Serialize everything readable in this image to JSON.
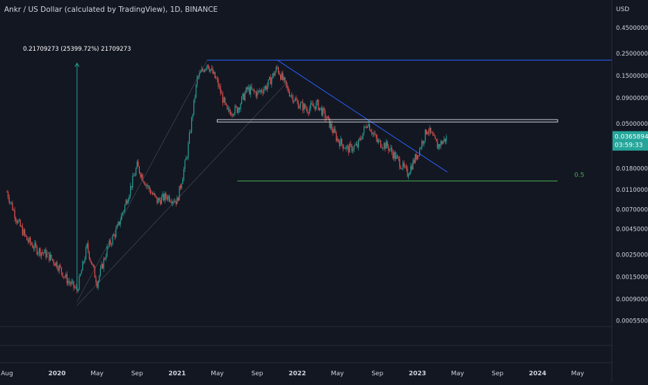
{
  "chart_data": {
    "type": "candlestick",
    "title": "Ankr / US Dollar (calculated by TradingView), 1D, BINANCE",
    "currency": "USD",
    "y_scale": "log",
    "ylim": [
      0.00048,
      0.6
    ],
    "y_ticks": [
      "0.45000000",
      "0.25000000",
      "0.15000000",
      "0.09000000",
      "0.05000000",
      "0.01800000",
      "0.01100000",
      "0.00700000",
      "0.00450000",
      "0.00250000",
      "0.00150000",
      "0.00090000",
      "0.00055000"
    ],
    "x_ticks": [
      "Aug",
      "2020",
      "May",
      "Sep",
      "2021",
      "May",
      "Sep",
      "2022",
      "May",
      "Sep",
      "2023",
      "May",
      "Sep",
      "2024",
      "May"
    ],
    "last_price": {
      "value": "0.03658946",
      "countdown": "03:59:33"
    },
    "annotations": {
      "measure_label": "0.21709273 (25399.72%) 21709273",
      "fib_label": "0.5"
    },
    "colors": {
      "background": "#131722",
      "up": "#26a69a",
      "down": "#ef5350",
      "trendline": "#2962ff",
      "fib": "#4caf50",
      "axis_text": "#d1d4dc"
    },
    "series": [
      {
        "date": "2019-08",
        "value": 0.0105
      },
      {
        "date": "2019-09",
        "value": 0.0055
      },
      {
        "date": "2019-10",
        "value": 0.0035
      },
      {
        "date": "2019-11",
        "value": 0.0028
      },
      {
        "date": "2019-12",
        "value": 0.0025
      },
      {
        "date": "2020-01",
        "value": 0.002
      },
      {
        "date": "2020-02",
        "value": 0.0014
      },
      {
        "date": "2020-03",
        "value": 0.0011
      },
      {
        "date": "2020-04",
        "value": 0.003
      },
      {
        "date": "2020-05",
        "value": 0.0013
      },
      {
        "date": "2020-06",
        "value": 0.0028
      },
      {
        "date": "2020-07",
        "value": 0.0045
      },
      {
        "date": "2020-08",
        "value": 0.009
      },
      {
        "date": "2020-09",
        "value": 0.019
      },
      {
        "date": "2020-10",
        "value": 0.012
      },
      {
        "date": "2020-11",
        "value": 0.0085
      },
      {
        "date": "2020-12",
        "value": 0.0095
      },
      {
        "date": "2021-01",
        "value": 0.0085
      },
      {
        "date": "2021-02",
        "value": 0.025
      },
      {
        "date": "2021-03",
        "value": 0.14
      },
      {
        "date": "2021-04",
        "value": 0.2
      },
      {
        "date": "2021-05",
        "value": 0.13
      },
      {
        "date": "2021-06",
        "value": 0.065
      },
      {
        "date": "2021-07",
        "value": 0.07
      },
      {
        "date": "2021-08",
        "value": 0.11
      },
      {
        "date": "2021-09",
        "value": 0.1
      },
      {
        "date": "2021-10",
        "value": 0.12
      },
      {
        "date": "2021-11",
        "value": 0.18
      },
      {
        "date": "2021-12",
        "value": 0.11
      },
      {
        "date": "2022-01",
        "value": 0.08
      },
      {
        "date": "2022-02",
        "value": 0.07
      },
      {
        "date": "2022-03",
        "value": 0.078
      },
      {
        "date": "2022-04",
        "value": 0.055
      },
      {
        "date": "2022-05",
        "value": 0.035
      },
      {
        "date": "2022-06",
        "value": 0.028
      },
      {
        "date": "2022-07",
        "value": 0.03
      },
      {
        "date": "2022-08",
        "value": 0.052
      },
      {
        "date": "2022-09",
        "value": 0.033
      },
      {
        "date": "2022-10",
        "value": 0.03
      },
      {
        "date": "2022-11",
        "value": 0.022
      },
      {
        "date": "2022-12",
        "value": 0.016
      },
      {
        "date": "2023-01",
        "value": 0.025
      },
      {
        "date": "2023-02",
        "value": 0.045
      },
      {
        "date": "2023-03",
        "value": 0.03
      },
      {
        "date": "2023-04",
        "value": 0.0366
      }
    ],
    "drawings": [
      {
        "kind": "horizontal",
        "name": "resistance-top",
        "y": 0.215,
        "x_from": "2021-04"
      },
      {
        "kind": "trendline",
        "name": "descending-trendline",
        "points": [
          [
            "2021-11",
            0.215
          ],
          [
            "2023-04",
            0.0165
          ]
        ]
      },
      {
        "kind": "trendline",
        "name": "channel-upper",
        "points": [
          [
            "2020-03",
            0.00085
          ],
          [
            "2021-04",
            0.215
          ]
        ]
      },
      {
        "kind": "trendline",
        "name": "channel-lower",
        "points": [
          [
            "2020-03",
            0.00078
          ],
          [
            "2021-12",
            0.13
          ]
        ]
      },
      {
        "kind": "rectangle",
        "name": "resistance-zone",
        "y_range": [
          0.052,
          0.055
        ],
        "x_range": [
          "2021-05",
          "2024-03"
        ]
      },
      {
        "kind": "horizontal",
        "name": "fib-level",
        "y": 0.0135,
        "x_from": "2021-07",
        "x_to": "2024-03"
      },
      {
        "kind": "arrow",
        "name": "measure-arrow",
        "x": "2020-03",
        "y_range": [
          0.0011,
          0.2
        ]
      }
    ]
  }
}
